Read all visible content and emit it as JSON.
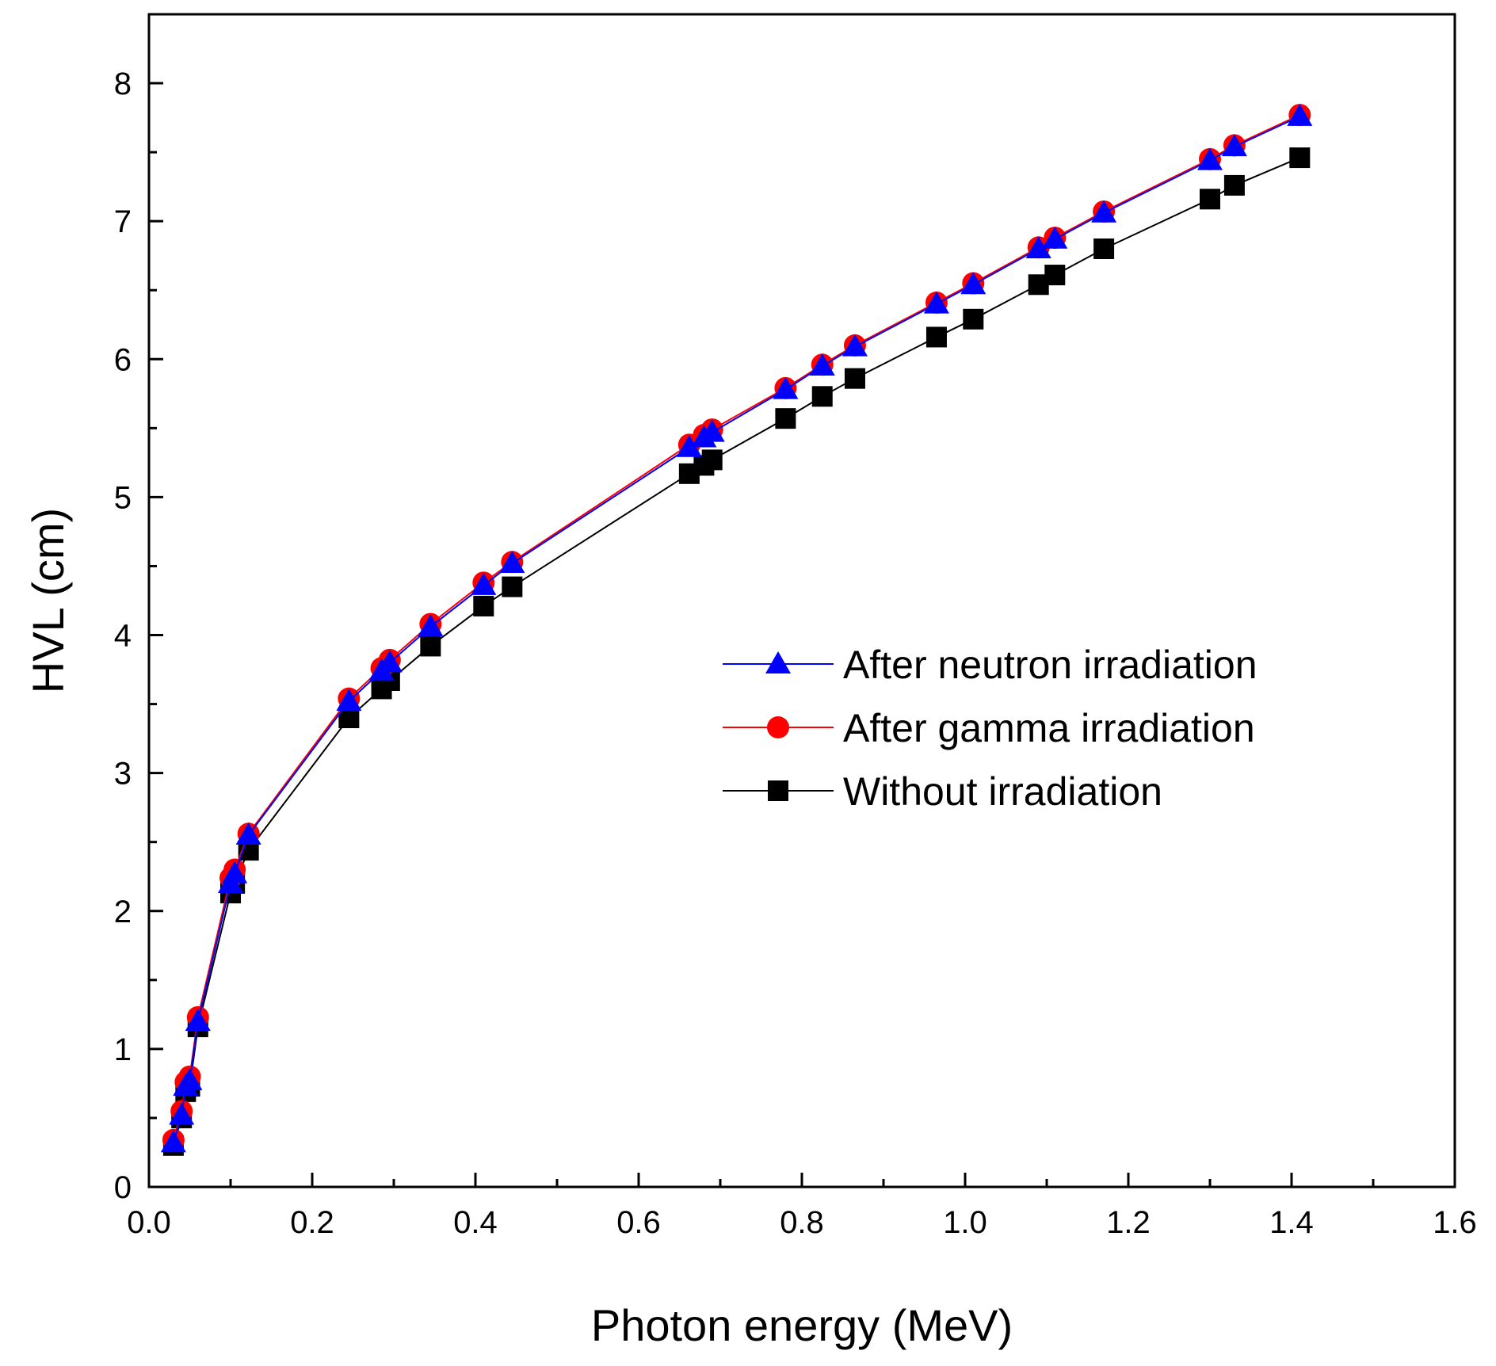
{
  "chart_data": {
    "type": "line",
    "title": "",
    "xlabel": "Photon energy (MeV)",
    "ylabel": "HVL (cm)",
    "xlim": [
      0.0,
      1.6
    ],
    "ylim": [
      0,
      8.5
    ],
    "x_ticks": [
      "0.0",
      "0.2",
      "0.4",
      "0.6",
      "0.8",
      "1.0",
      "1.2",
      "1.4",
      "1.6"
    ],
    "x_tick_values": [
      0.0,
      0.2,
      0.4,
      0.6,
      0.8,
      1.0,
      1.2,
      1.4,
      1.6
    ],
    "y_ticks": [
      "0",
      "1",
      "2",
      "3",
      "4",
      "5",
      "6",
      "7",
      "8"
    ],
    "y_tick_values": [
      0,
      1,
      2,
      3,
      4,
      5,
      6,
      7,
      8
    ],
    "grid": false,
    "legend_position": "center-right",
    "x": [
      0.03,
      0.04,
      0.045,
      0.05,
      0.06,
      0.1,
      0.105,
      0.122,
      0.245,
      0.285,
      0.295,
      0.345,
      0.41,
      0.445,
      0.662,
      0.68,
      0.69,
      0.78,
      0.825,
      0.865,
      0.965,
      1.01,
      1.09,
      1.11,
      1.17,
      1.3,
      1.33,
      1.41
    ],
    "series": [
      {
        "name": "After neutron irradiation",
        "color": "#0000ff",
        "marker": "triangle",
        "values": [
          0.32,
          0.52,
          0.73,
          0.77,
          1.2,
          2.2,
          2.27,
          2.55,
          3.52,
          3.74,
          3.8,
          4.06,
          4.36,
          4.52,
          5.36,
          5.43,
          5.47,
          5.78,
          5.95,
          6.09,
          6.4,
          6.54,
          6.8,
          6.87,
          7.06,
          7.44,
          7.54,
          7.76
        ]
      },
      {
        "name": "After gamma irradiation",
        "color": "#ff0000",
        "marker": "circle",
        "values": [
          0.34,
          0.55,
          0.76,
          0.8,
          1.23,
          2.24,
          2.3,
          2.56,
          3.54,
          3.76,
          3.82,
          4.08,
          4.38,
          4.53,
          5.38,
          5.45,
          5.49,
          5.79,
          5.96,
          6.1,
          6.41,
          6.55,
          6.81,
          6.88,
          7.07,
          7.45,
          7.55,
          7.77
        ]
      },
      {
        "name": "Without irradiation",
        "color": "#000000",
        "marker": "square",
        "values": [
          0.3,
          0.5,
          0.69,
          0.73,
          1.16,
          2.13,
          2.2,
          2.44,
          3.4,
          3.61,
          3.67,
          3.92,
          4.21,
          4.35,
          5.17,
          5.23,
          5.27,
          5.57,
          5.73,
          5.86,
          6.16,
          6.29,
          6.54,
          6.61,
          6.8,
          7.16,
          7.26,
          7.46
        ]
      }
    ]
  }
}
